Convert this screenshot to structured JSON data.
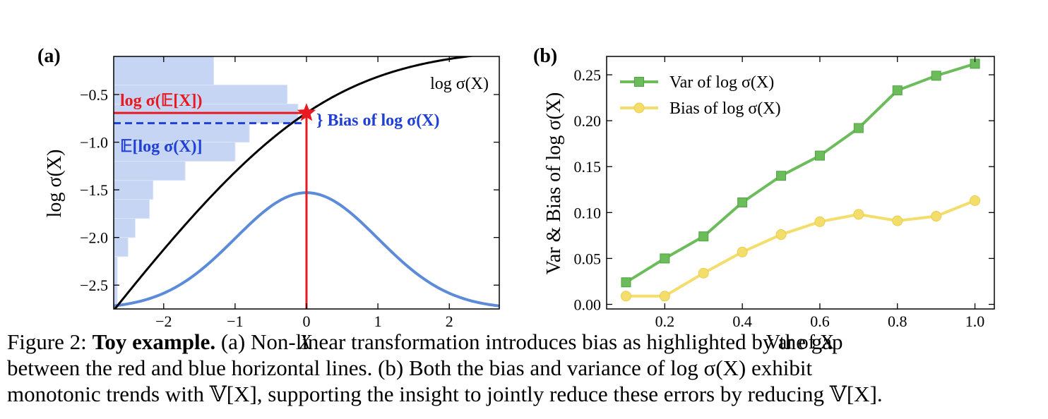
{
  "chart_data": [
    {
      "panel": "(a)",
      "type": "line",
      "xlabel": "X",
      "ylabel": "log σ(X)",
      "xlim": [
        -2.7,
        2.7
      ],
      "ylim": [
        -2.75,
        -0.1
      ],
      "xticks": [
        -2,
        -1,
        0,
        1,
        2
      ],
      "xtick_labels": [
        "−2",
        "−1",
        "0",
        "1",
        "2"
      ],
      "yticks": [
        -0.5,
        -1.0,
        -1.5,
        -2.0,
        -2.5
      ],
      "ytick_labels": [
        "−0.5",
        "−1.0",
        "−1.5",
        "−2.0",
        "−2.5"
      ],
      "series": [
        {
          "name": "log σ(X)",
          "function": "log_sigmoid",
          "color": "#000000"
        },
        {
          "function": "gaussian_density",
          "color": "#5b8bd9",
          "peak_y": -1.53,
          "base_y": -2.75,
          "sigma": 1.0
        }
      ],
      "histogram": {
        "color": "#c5d5f3",
        "bins": [
          {
            "y0": -0.4,
            "y1": -0.1,
            "x_end": -1.3
          },
          {
            "y0": -0.6,
            "y1": -0.4,
            "x_end": -0.27
          },
          {
            "y0": -0.8,
            "y1": -0.6,
            "x_end": -0.12
          },
          {
            "y0": -1.0,
            "y1": -0.8,
            "x_end": -0.8
          },
          {
            "y0": -1.2,
            "y1": -1.0,
            "x_end": -1.0
          },
          {
            "y0": -1.4,
            "y1": -1.2,
            "x_end": -1.7
          },
          {
            "y0": -1.6,
            "y1": -1.4,
            "x_end": -2.15
          },
          {
            "y0": -1.8,
            "y1": -1.6,
            "x_end": -2.2
          },
          {
            "y0": -2.0,
            "y1": -1.8,
            "x_end": -2.4
          },
          {
            "y0": -2.2,
            "y1": -2.0,
            "x_end": -2.5
          },
          {
            "y0": -2.75,
            "y1": -2.2,
            "x_end": -2.65
          }
        ]
      },
      "annotations": {
        "red_line_y": -0.693,
        "blue_dashed_y": -0.8,
        "star": {
          "x": 0,
          "y": -0.693
        },
        "red_label": "log σ(𝔼[X])",
        "blue_label": "𝔼[log σ(X)]",
        "bias_label": "} Bias of log σ(X)",
        "curve_label": "log σ(X)",
        "red_color": "#e8191f",
        "blue_color": "#1f3fd6"
      }
    },
    {
      "panel": "(b)",
      "type": "line",
      "xlabel": "Var of X",
      "ylabel": "Var & Bias of log σ(X)",
      "xlim": [
        0.05,
        1.05
      ],
      "ylim": [
        -0.005,
        0.27
      ],
      "xticks": [
        0.2,
        0.4,
        0.6,
        0.8,
        1.0
      ],
      "xtick_labels": [
        "0.2",
        "0.4",
        "0.6",
        "0.8",
        "1.0"
      ],
      "yticks": [
        0.0,
        0.05,
        0.1,
        0.15,
        0.2,
        0.25
      ],
      "ytick_labels": [
        "0.00",
        "0.05",
        "0.10",
        "0.15",
        "0.20",
        "0.25"
      ],
      "legend": "top-left",
      "x": [
        0.1,
        0.2,
        0.3,
        0.4,
        0.5,
        0.6,
        0.7,
        0.8,
        0.9,
        1.0
      ],
      "series": [
        {
          "name": "Var of log σ(X)",
          "marker": "square",
          "color": "#6cbc5c",
          "values": [
            0.024,
            0.05,
            0.074,
            0.111,
            0.14,
            0.162,
            0.192,
            0.233,
            0.249,
            0.262
          ]
        },
        {
          "name": "Bias of log σ(X)",
          "marker": "circle",
          "color": "#f3dd6b",
          "values": [
            0.009,
            0.009,
            0.034,
            0.057,
            0.076,
            0.09,
            0.098,
            0.091,
            0.096,
            0.113
          ]
        }
      ]
    }
  ],
  "caption": {
    "prefix": "Figure 2: ",
    "title": "Toy example.",
    "line1_rest": " (a) Non-linear transformation introduces bias as highlighted by the gap",
    "line2": "between the red and blue horizontal lines.  (b) Both the bias and variance of log σ(X) exhibit",
    "line3": "monotonic trends with 𝕍[X], supporting the insight to jointly reduce these errors by reducing 𝕍[X]."
  }
}
